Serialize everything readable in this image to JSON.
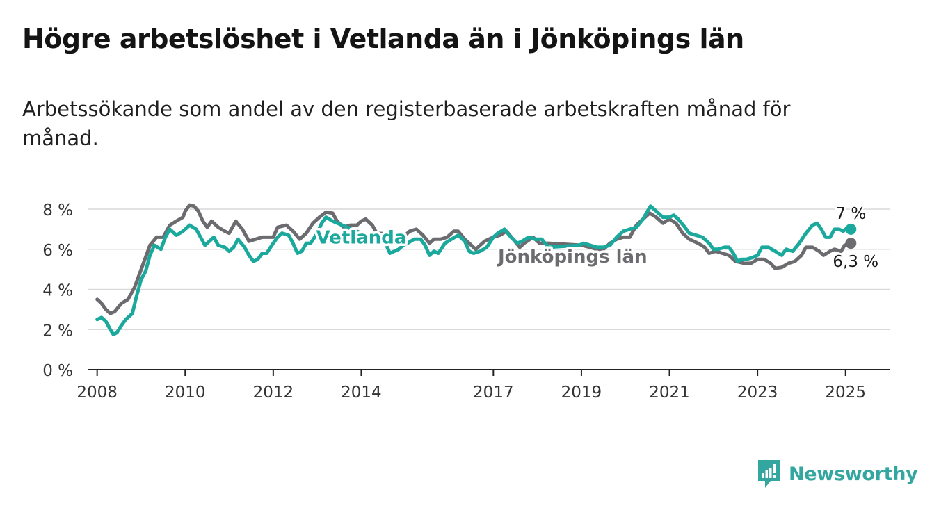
{
  "title": "Högre arbetslöshet i Vetlanda än i Jönköpings län",
  "subtitle": "Arbetssökande som andel av den registerbaserade arbetskraften månad för månad.",
  "brand": {
    "name": "Newsworthy",
    "icon": "newsworthy-logo-icon",
    "color": "#34a6a0"
  },
  "chart_data": {
    "type": "line",
    "title": "Högre arbetslöshet i Vetlanda än i Jönköpings län",
    "subtitle": "Arbetssökande som andel av den registerbaserade arbetskraften månad för månad.",
    "xlabel": "",
    "ylabel": "",
    "xlim": [
      2007.8,
      2026.0
    ],
    "ylim": [
      0,
      8
    ],
    "yticks": [
      0,
      2,
      4,
      6,
      8
    ],
    "ytick_labels": [
      "0 %",
      "2 %",
      "4 %",
      "6 %",
      "8 %"
    ],
    "xticks": [
      2008,
      2010,
      2012,
      2014,
      2017,
      2019,
      2021,
      2023,
      2025
    ],
    "xtick_labels": [
      "2008",
      "2010",
      "2012",
      "2014",
      "2017",
      "2019",
      "2021",
      "2023",
      "2025"
    ],
    "grid": true,
    "series": [
      {
        "name": "Vetlanda",
        "color": "#1aa99c",
        "end_label": "7 %",
        "points": [
          [
            2008.0,
            2.5
          ],
          [
            2008.1,
            2.6
          ],
          [
            2008.2,
            2.4
          ],
          [
            2008.3,
            2.0
          ],
          [
            2008.37,
            1.75
          ],
          [
            2008.45,
            1.85
          ],
          [
            2008.55,
            2.2
          ],
          [
            2008.65,
            2.5
          ],
          [
            2008.8,
            2.8
          ],
          [
            2008.9,
            3.7
          ],
          [
            2009.0,
            4.5
          ],
          [
            2009.1,
            4.9
          ],
          [
            2009.2,
            5.7
          ],
          [
            2009.3,
            6.2
          ],
          [
            2009.45,
            6.0
          ],
          [
            2009.55,
            6.6
          ],
          [
            2009.65,
            7.0
          ],
          [
            2009.8,
            6.7
          ],
          [
            2009.95,
            6.9
          ],
          [
            2010.1,
            7.2
          ],
          [
            2010.25,
            7.0
          ],
          [
            2010.35,
            6.6
          ],
          [
            2010.45,
            6.2
          ],
          [
            2010.55,
            6.4
          ],
          [
            2010.65,
            6.6
          ],
          [
            2010.75,
            6.2
          ],
          [
            2010.9,
            6.1
          ],
          [
            2011.0,
            5.9
          ],
          [
            2011.1,
            6.1
          ],
          [
            2011.2,
            6.5
          ],
          [
            2011.35,
            6.1
          ],
          [
            2011.45,
            5.7
          ],
          [
            2011.55,
            5.4
          ],
          [
            2011.65,
            5.5
          ],
          [
            2011.75,
            5.8
          ],
          [
            2011.85,
            5.8
          ],
          [
            2012.0,
            6.3
          ],
          [
            2012.1,
            6.6
          ],
          [
            2012.2,
            6.8
          ],
          [
            2012.35,
            6.7
          ],
          [
            2012.45,
            6.3
          ],
          [
            2012.55,
            5.8
          ],
          [
            2012.65,
            5.9
          ],
          [
            2012.75,
            6.3
          ],
          [
            2012.85,
            6.3
          ],
          [
            2013.0,
            6.8
          ],
          [
            2013.1,
            7.3
          ],
          [
            2013.2,
            7.6
          ],
          [
            2013.35,
            7.4
          ],
          [
            2014.55,
            6.3
          ],
          [
            2014.65,
            5.8
          ],
          [
            2014.75,
            5.9
          ],
          [
            2014.85,
            6.0
          ],
          [
            2014.95,
            6.2
          ],
          [
            2015.05,
            6.3
          ],
          [
            2015.2,
            6.5
          ],
          [
            2015.35,
            6.5
          ],
          [
            2015.45,
            6.2
          ],
          [
            2015.55,
            5.7
          ],
          [
            2015.65,
            5.9
          ],
          [
            2015.75,
            5.8
          ],
          [
            2015.9,
            6.3
          ],
          [
            2016.05,
            6.5
          ],
          [
            2016.2,
            6.7
          ],
          [
            2016.35,
            6.4
          ],
          [
            2016.45,
            5.9
          ],
          [
            2016.55,
            5.8
          ],
          [
            2016.7,
            5.9
          ],
          [
            2016.85,
            6.1
          ],
          [
            2017.0,
            6.6
          ],
          [
            2017.1,
            6.8
          ],
          [
            2017.25,
            7.0
          ],
          [
            2017.4,
            6.6
          ],
          [
            2017.55,
            6.3
          ],
          [
            2017.65,
            6.4
          ],
          [
            2017.8,
            6.6
          ],
          [
            2017.95,
            6.5
          ],
          [
            2018.1,
            6.5
          ],
          [
            2018.25,
            6.1
          ],
          [
            2018.95,
            6.2
          ],
          [
            2019.05,
            6.3
          ],
          [
            2019.2,
            6.2
          ],
          [
            2019.35,
            6.1
          ],
          [
            2019.5,
            6.1
          ],
          [
            2019.65,
            6.2
          ],
          [
            2019.8,
            6.6
          ],
          [
            2019.95,
            6.9
          ],
          [
            2020.1,
            7.0
          ],
          [
            2020.25,
            7.1
          ],
          [
            2020.4,
            7.5
          ],
          [
            2020.5,
            7.9
          ],
          [
            2020.57,
            8.15
          ],
          [
            2020.7,
            7.9
          ],
          [
            2020.85,
            7.6
          ],
          [
            2021.0,
            7.6
          ],
          [
            2021.1,
            7.7
          ],
          [
            2021.2,
            7.5
          ],
          [
            2021.35,
            7.1
          ],
          [
            2021.45,
            6.8
          ],
          [
            2021.6,
            6.7
          ],
          [
            2021.75,
            6.6
          ],
          [
            2021.9,
            6.3
          ],
          [
            2022.0,
            6.0
          ],
          [
            2022.1,
            6.0
          ],
          [
            2022.25,
            6.1
          ],
          [
            2022.35,
            6.1
          ],
          [
            2022.45,
            5.8
          ],
          [
            2022.55,
            5.4
          ],
          [
            2022.65,
            5.5
          ],
          [
            2022.75,
            5.5
          ],
          [
            2022.9,
            5.6
          ],
          [
            2023.0,
            5.7
          ],
          [
            2023.1,
            6.1
          ],
          [
            2023.25,
            6.1
          ],
          [
            2023.4,
            5.9
          ],
          [
            2023.55,
            5.7
          ],
          [
            2023.65,
            6.0
          ],
          [
            2023.8,
            5.9
          ],
          [
            2023.95,
            6.3
          ],
          [
            2024.1,
            6.8
          ],
          [
            2024.25,
            7.2
          ],
          [
            2024.35,
            7.3
          ],
          [
            2024.45,
            7.0
          ],
          [
            2024.55,
            6.6
          ],
          [
            2024.65,
            6.6
          ],
          [
            2024.75,
            7.0
          ],
          [
            2024.85,
            7.0
          ],
          [
            2024.95,
            6.9
          ],
          [
            2025.05,
            7.1
          ],
          [
            2025.12,
            7.0
          ]
        ]
      },
      {
        "name": "Jönköpings län",
        "color": "#6b6b70",
        "end_label": "6,3 %",
        "points": [
          [
            2008.0,
            3.5
          ],
          [
            2008.1,
            3.3
          ],
          [
            2008.2,
            3.0
          ],
          [
            2008.3,
            2.8
          ],
          [
            2008.4,
            2.9
          ],
          [
            2008.55,
            3.3
          ],
          [
            2008.7,
            3.5
          ],
          [
            2008.85,
            4.1
          ],
          [
            2009.0,
            5.0
          ],
          [
            2009.1,
            5.6
          ],
          [
            2009.2,
            6.2
          ],
          [
            2009.35,
            6.6
          ],
          [
            2009.5,
            6.6
          ],
          [
            2009.65,
            7.2
          ],
          [
            2009.8,
            7.4
          ],
          [
            2009.95,
            7.6
          ],
          [
            2010.0,
            7.9
          ],
          [
            2010.1,
            8.2
          ],
          [
            2010.2,
            8.15
          ],
          [
            2010.3,
            7.9
          ],
          [
            2010.4,
            7.4
          ],
          [
            2010.5,
            7.1
          ],
          [
            2010.6,
            7.4
          ],
          [
            2010.75,
            7.1
          ],
          [
            2010.9,
            6.9
          ],
          [
            2011.0,
            6.8
          ],
          [
            2011.15,
            7.4
          ],
          [
            2011.3,
            7.0
          ],
          [
            2011.45,
            6.4
          ],
          [
            2011.6,
            6.5
          ],
          [
            2011.75,
            6.6
          ],
          [
            2012.0,
            6.6
          ],
          [
            2012.1,
            7.1
          ],
          [
            2012.3,
            7.2
          ],
          [
            2012.45,
            6.9
          ],
          [
            2012.6,
            6.5
          ],
          [
            2012.75,
            6.8
          ],
          [
            2012.9,
            7.3
          ],
          [
            2013.05,
            7.6
          ],
          [
            2013.2,
            7.85
          ],
          [
            2013.35,
            7.8
          ],
          [
            2013.45,
            7.4
          ],
          [
            2013.6,
            7.1
          ],
          [
            2013.75,
            7.2
          ],
          [
            2013.9,
            7.2
          ],
          [
            2014.0,
            7.4
          ],
          [
            2014.1,
            7.5
          ],
          [
            2014.25,
            7.2
          ],
          [
            2014.35,
            6.8
          ],
          [
            2015.0,
            6.7
          ],
          [
            2015.1,
            6.9
          ],
          [
            2015.25,
            7.0
          ],
          [
            2015.4,
            6.7
          ],
          [
            2015.55,
            6.3
          ],
          [
            2015.65,
            6.5
          ],
          [
            2015.8,
            6.5
          ],
          [
            2015.95,
            6.6
          ],
          [
            2016.1,
            6.9
          ],
          [
            2016.2,
            6.9
          ],
          [
            2016.35,
            6.5
          ],
          [
            2016.5,
            6.2
          ],
          [
            2016.6,
            6.0
          ],
          [
            2016.8,
            6.4
          ],
          [
            2017.0,
            6.6
          ],
          [
            2017.15,
            6.7
          ],
          [
            2017.3,
            6.9
          ],
          [
            2017.45,
            6.5
          ],
          [
            2017.6,
            6.1
          ],
          [
            2017.7,
            6.3
          ],
          [
            2017.9,
            6.6
          ],
          [
            2018.05,
            6.3
          ],
          [
            2018.25,
            6.3
          ],
          [
            2019.0,
            6.2
          ],
          [
            2019.2,
            6.1
          ],
          [
            2019.35,
            6.0
          ],
          [
            2019.5,
            6.0
          ],
          [
            2019.65,
            6.3
          ],
          [
            2019.8,
            6.5
          ],
          [
            2019.95,
            6.6
          ],
          [
            2020.1,
            6.6
          ],
          [
            2020.25,
            7.2
          ],
          [
            2020.4,
            7.5
          ],
          [
            2020.55,
            7.8
          ],
          [
            2020.7,
            7.6
          ],
          [
            2020.85,
            7.3
          ],
          [
            2021.0,
            7.5
          ],
          [
            2021.15,
            7.3
          ],
          [
            2021.3,
            6.8
          ],
          [
            2021.45,
            6.5
          ],
          [
            2021.65,
            6.3
          ],
          [
            2021.8,
            6.1
          ],
          [
            2021.9,
            5.8
          ],
          [
            2022.05,
            5.9
          ],
          [
            2022.2,
            5.8
          ],
          [
            2022.35,
            5.7
          ],
          [
            2022.5,
            5.4
          ],
          [
            2022.7,
            5.3
          ],
          [
            2022.85,
            5.3
          ],
          [
            2023.0,
            5.5
          ],
          [
            2023.15,
            5.5
          ],
          [
            2023.3,
            5.3
          ],
          [
            2023.4,
            5.05
          ],
          [
            2023.55,
            5.1
          ],
          [
            2023.7,
            5.3
          ],
          [
            2023.85,
            5.4
          ],
          [
            2024.0,
            5.7
          ],
          [
            2024.1,
            6.1
          ],
          [
            2024.25,
            6.1
          ],
          [
            2024.4,
            5.9
          ],
          [
            2024.5,
            5.7
          ],
          [
            2024.65,
            5.9
          ],
          [
            2024.75,
            6.0
          ],
          [
            2024.9,
            5.9
          ],
          [
            2024.98,
            6.2
          ],
          [
            2025.12,
            6.3
          ]
        ]
      }
    ],
    "annotations": [
      {
        "text": "Vetlanda",
        "series": "Vetlanda",
        "at": [
          2014.0,
          6.6
        ]
      },
      {
        "text": "Jönköpings län",
        "series": "Jönköpings län",
        "at": [
          2018.8,
          5.65
        ]
      }
    ]
  }
}
